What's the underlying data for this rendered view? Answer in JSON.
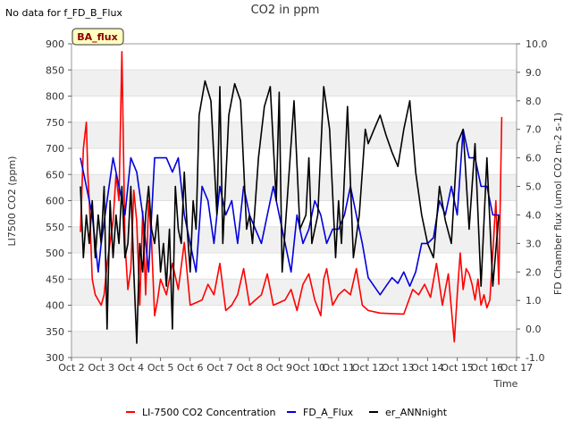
{
  "corner_note": "No data for f_FD_B_Flux",
  "tag_label": "BA_flux",
  "chart_data": {
    "type": "line",
    "title": "CO2 in ppm",
    "xlabel": "Time",
    "ylabel": "LI7500 CO2 (ppm)",
    "y2label": "FD Chamber flux (umol CO2 m-2 s-1)",
    "x_ticks": [
      "Oct 2",
      "Oct 3",
      "Oct 4",
      "Oct 5",
      "Oct 6",
      "Oct 7",
      "Oct 8",
      "Oct 9",
      "Oct 10",
      "Oct 11",
      "Oct 12",
      "Oct 13",
      "Oct 14",
      "Oct 15",
      "Oct 16",
      "Oct 17"
    ],
    "xlim": [
      0,
      15
    ],
    "ylim": [
      300,
      900
    ],
    "y_ticks": [
      300,
      350,
      400,
      450,
      500,
      550,
      600,
      650,
      700,
      750,
      800,
      850,
      900
    ],
    "y2lim": [
      -1,
      10
    ],
    "y2_ticks": [
      "-1.0",
      "0.0",
      "1.0",
      "2.0",
      "3.0",
      "4.0",
      "5.0",
      "6.0",
      "7.0",
      "8.0",
      "9.0",
      "10.0"
    ],
    "grid": "horizontal bands",
    "legend_placement": "bottom",
    "series": [
      {
        "name": "LI-7500 CO2 Concentration",
        "color": "#ff0000",
        "axis": "left",
        "x": [
          0.3,
          0.4,
          0.5,
          0.55,
          0.6,
          0.7,
          0.8,
          0.9,
          1.0,
          1.1,
          1.2,
          1.4,
          1.5,
          1.6,
          1.7,
          1.8,
          1.9,
          2.0,
          2.1,
          2.2,
          2.3,
          2.4,
          2.5,
          2.6,
          2.7,
          2.8,
          2.9,
          3.0,
          3.2,
          3.4,
          3.6,
          3.8,
          4.0,
          4.2,
          4.4,
          4.6,
          4.8,
          5.0,
          5.2,
          5.4,
          5.6,
          5.8,
          6.0,
          6.2,
          6.4,
          6.6,
          6.8,
          7.0,
          7.2,
          7.4,
          7.6,
          7.8,
          8.0,
          8.2,
          8.4,
          8.5,
          8.6,
          8.8,
          9.0,
          9.2,
          9.4,
          9.6,
          9.8,
          10.0,
          10.4,
          10.8,
          11.2,
          11.5,
          11.7,
          11.9,
          12.1,
          12.3,
          12.5,
          12.7,
          12.9,
          13.0,
          13.1,
          13.2,
          13.3,
          13.4,
          13.5,
          13.6,
          13.7,
          13.8,
          13.9,
          14.0,
          14.1,
          14.2,
          14.3,
          14.4,
          14.5
        ],
        "y": [
          540,
          700,
          750,
          650,
          600,
          450,
          420,
          410,
          400,
          420,
          480,
          560,
          650,
          600,
          885,
          520,
          430,
          470,
          620,
          560,
          400,
          580,
          420,
          600,
          520,
          380,
          410,
          450,
          420,
          480,
          430,
          520,
          400,
          405,
          410,
          440,
          420,
          480,
          390,
          400,
          420,
          470,
          400,
          410,
          420,
          460,
          400,
          405,
          410,
          430,
          390,
          440,
          460,
          410,
          380,
          450,
          470,
          400,
          420,
          430,
          420,
          470,
          400,
          390,
          385,
          384,
          383,
          430,
          420,
          440,
          415,
          480,
          400,
          460,
          330,
          420,
          500,
          430,
          470,
          460,
          440,
          410,
          450,
          400,
          420,
          395,
          410,
          500,
          600,
          440,
          760
        ]
      },
      {
        "name": "FD_A_Flux",
        "color": "#0000dd",
        "axis": "right",
        "x": [
          0.3,
          0.5,
          0.7,
          0.9,
          1.0,
          1.2,
          1.4,
          1.6,
          1.8,
          2.0,
          2.2,
          2.4,
          2.6,
          2.8,
          3.0,
          3.2,
          3.4,
          3.6,
          3.8,
          4.0,
          4.2,
          4.4,
          4.6,
          4.8,
          5.0,
          5.2,
          5.4,
          5.6,
          5.8,
          6.0,
          6.2,
          6.4,
          6.6,
          6.8,
          7.0,
          7.2,
          7.4,
          7.6,
          7.8,
          8.0,
          8.2,
          8.4,
          8.6,
          8.8,
          9.0,
          9.2,
          9.4,
          9.6,
          9.8,
          10.0,
          10.2,
          10.4,
          10.6,
          10.8,
          11.0,
          11.2,
          11.4,
          11.6,
          11.8,
          12.0,
          12.2,
          12.4,
          12.6,
          12.8,
          13.0,
          13.2,
          13.4,
          13.6,
          13.8,
          14.0,
          14.2,
          14.4
        ],
        "y": [
          6.0,
          5.0,
          4.0,
          2.0,
          3.0,
          4.5,
          6.0,
          5.0,
          4.0,
          6.0,
          5.5,
          4.0,
          2.0,
          6.0,
          6.0,
          6.0,
          5.5,
          6.0,
          4.0,
          3.0,
          2.0,
          5.0,
          4.5,
          3.0,
          5.0,
          4.0,
          4.5,
          3.0,
          5.0,
          4.0,
          3.5,
          3.0,
          4.0,
          5.0,
          4.0,
          3.0,
          2.0,
          4.0,
          3.0,
          3.5,
          4.5,
          4.0,
          3.0,
          3.5,
          3.5,
          4.0,
          5.0,
          4.0,
          3.0,
          1.8,
          1.5,
          1.2,
          1.5,
          1.8,
          1.6,
          2.0,
          1.5,
          2.0,
          3.0,
          3.0,
          3.2,
          4.5,
          4.0,
          5.0,
          4.0,
          7.0,
          6.0,
          6.0,
          5.0,
          5.0,
          4.0,
          4.0
        ]
      },
      {
        "name": "er_ANNnight",
        "color": "#000000",
        "axis": "right",
        "x": [
          0.3,
          0.4,
          0.5,
          0.6,
          0.7,
          0.8,
          0.9,
          1.0,
          1.1,
          1.2,
          1.3,
          1.4,
          1.5,
          1.6,
          1.7,
          1.8,
          1.9,
          2.0,
          2.1,
          2.2,
          2.3,
          2.4,
          2.5,
          2.6,
          2.7,
          2.8,
          2.9,
          3.0,
          3.1,
          3.2,
          3.3,
          3.4,
          3.5,
          3.6,
          3.7,
          3.8,
          3.9,
          4.0,
          4.1,
          4.2,
          4.3,
          4.5,
          4.7,
          4.9,
          5.0,
          5.1,
          5.3,
          5.5,
          5.7,
          5.9,
          6.0,
          6.1,
          6.3,
          6.5,
          6.7,
          6.9,
          7.0,
          7.1,
          7.3,
          7.5,
          7.7,
          7.9,
          8.0,
          8.1,
          8.3,
          8.5,
          8.7,
          8.9,
          9.0,
          9.1,
          9.3,
          9.5,
          9.7,
          9.9,
          10.0,
          10.2,
          10.4,
          10.6,
          10.8,
          11.0,
          11.2,
          11.4,
          11.6,
          11.8,
          12.0,
          12.2,
          12.4,
          12.6,
          12.8,
          13.0,
          13.2,
          13.4,
          13.6,
          13.8,
          14.0,
          14.2,
          14.4
        ],
        "y": [
          5.0,
          2.5,
          4.0,
          3.0,
          4.5,
          2.5,
          4.0,
          3.0,
          5.0,
          0.0,
          4.5,
          2.5,
          4.0,
          3.0,
          5.0,
          2.5,
          3.0,
          5.0,
          2.0,
          -0.5,
          3.0,
          2.0,
          4.0,
          5.0,
          3.5,
          3.0,
          4.0,
          2.0,
          3.0,
          1.5,
          3.5,
          0.0,
          5.0,
          3.5,
          3.0,
          5.5,
          3.5,
          2.0,
          4.5,
          3.5,
          7.5,
          8.7,
          8.0,
          4.0,
          8.5,
          3.0,
          7.5,
          8.6,
          8.0,
          3.5,
          4.0,
          3.0,
          6.0,
          7.8,
          8.5,
          4.5,
          8.3,
          2.0,
          5.0,
          8.0,
          3.5,
          4.0,
          6.0,
          3.0,
          4.0,
          8.5,
          7.0,
          2.5,
          4.5,
          3.0,
          7.8,
          2.5,
          4.0,
          7.0,
          6.5,
          7.0,
          7.5,
          6.8,
          6.2,
          5.7,
          7.0,
          8.0,
          5.5,
          4.0,
          3.0,
          2.5,
          5.0,
          3.8,
          3.0,
          6.5,
          7.0,
          3.5,
          6.5,
          1.5,
          6.0,
          1.5,
          4.0
        ]
      }
    ]
  }
}
